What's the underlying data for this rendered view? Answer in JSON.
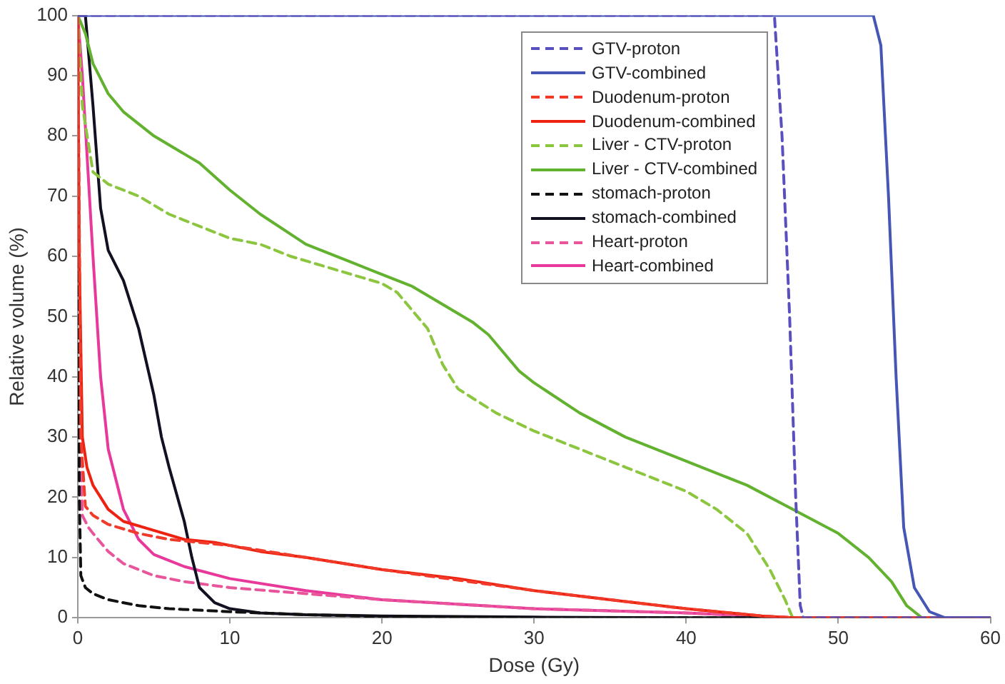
{
  "chart_data": {
    "type": "line",
    "xlabel": "Dose (Gy)",
    "ylabel": "Relative volume (%)",
    "xlim": [
      0,
      60
    ],
    "xticks": [
      0,
      10,
      20,
      30,
      40,
      50,
      60
    ],
    "ylim": [
      0,
      100
    ],
    "yticks": [
      0,
      10,
      20,
      30,
      40,
      50,
      60,
      70,
      80,
      90,
      100
    ],
    "grid": false,
    "legend": "top right",
    "marker": "none",
    "series": [
      {
        "name": "GTV-proton",
        "color": "#5a4fbf",
        "line_style": "dashed",
        "x": [
          0,
          45.8,
          46.3,
          46.8,
          47.2,
          47.5,
          47.7,
          60
        ],
        "values": [
          100,
          100,
          80,
          50,
          20,
          2,
          0,
          0
        ]
      },
      {
        "name": "GTV-combined",
        "color": "#4656b4",
        "line_style": "solid",
        "x": [
          0,
          52.3,
          52.8,
          53.3,
          53.8,
          54.3,
          55,
          56,
          57,
          60
        ],
        "values": [
          100,
          100,
          95,
          70,
          40,
          15,
          5,
          1,
          0,
          0
        ]
      },
      {
        "name": "Duodenum-proton",
        "color": "#f03a2a",
        "line_style": "dashed",
        "x": [
          0,
          0.2,
          0.5,
          1,
          2,
          4,
          6,
          10,
          15,
          20,
          30,
          40,
          45,
          47,
          60
        ],
        "values": [
          100,
          30,
          18.5,
          17,
          15.5,
          14,
          13,
          12,
          10,
          8,
          4.5,
          1.5,
          0.3,
          0,
          0
        ]
      },
      {
        "name": "Duodenum-combined",
        "color": "#ee2211",
        "line_style": "solid",
        "x": [
          0,
          0.1,
          0.3,
          0.6,
          1,
          2,
          3,
          5,
          7,
          9,
          12,
          15,
          20,
          25,
          30,
          35,
          40,
          45,
          47,
          60
        ],
        "values": [
          100,
          60,
          30,
          25,
          22,
          18,
          16,
          14.5,
          13,
          12.5,
          11,
          10,
          8,
          6.5,
          4.5,
          3,
          1.5,
          0.3,
          0,
          0
        ]
      },
      {
        "name": "Liver - CTV-proton",
        "color": "#8cc63f",
        "line_style": "dashed",
        "x": [
          0,
          0.3,
          1,
          2,
          4,
          6,
          8,
          10,
          12,
          14,
          16,
          18,
          20,
          21,
          22,
          23,
          24,
          25,
          27.5,
          30,
          33,
          36,
          40,
          42,
          44,
          45.5,
          46.5,
          47,
          60
        ],
        "values": [
          100,
          85,
          74,
          72,
          70,
          67,
          65,
          63,
          62,
          60,
          58.5,
          57,
          55.5,
          54,
          51,
          48,
          42,
          38,
          34,
          31,
          28,
          25,
          21,
          18,
          14,
          8,
          3,
          0,
          0
        ]
      },
      {
        "name": "Liver - CTV-combined",
        "color": "#62b22f",
        "line_style": "solid",
        "x": [
          0,
          0.5,
          1,
          2,
          3,
          5,
          7,
          8,
          10,
          12,
          15,
          18,
          20,
          22,
          24,
          26,
          27,
          28,
          29,
          30,
          33,
          36,
          40,
          44,
          47,
          50,
          52,
          53.5,
          54.5,
          55.5,
          60
        ],
        "values": [
          100,
          97,
          92,
          87,
          84,
          80,
          77,
          75.5,
          71,
          67,
          62,
          59,
          57,
          55,
          52,
          49,
          47,
          44,
          41,
          39,
          34,
          30,
          26,
          22,
          18,
          14,
          10,
          6,
          2,
          0,
          0
        ]
      },
      {
        "name": "stomach-proton",
        "color": "#111111",
        "line_style": "dashed",
        "x": [
          0,
          0.1,
          0.2,
          0.5,
          1,
          2,
          4,
          6,
          10,
          15,
          20,
          30,
          60
        ],
        "values": [
          100,
          20,
          7,
          5,
          4,
          3,
          2,
          1.5,
          1,
          0.5,
          0.2,
          0,
          0
        ]
      },
      {
        "name": "stomach-combined",
        "color": "#111122",
        "line_style": "solid",
        "x": [
          0,
          0.5,
          1,
          1.5,
          2,
          3,
          4,
          5,
          5.5,
          6,
          7,
          7.5,
          8,
          9,
          10,
          12,
          15,
          20,
          30,
          40,
          60
        ],
        "values": [
          100,
          100,
          85,
          68,
          61,
          56,
          48,
          37,
          30,
          25,
          16,
          10,
          5,
          2.5,
          1.5,
          0.8,
          0.5,
          0.3,
          0.1,
          0,
          0
        ]
      },
      {
        "name": "Heart-proton",
        "color": "#e8559b",
        "line_style": "dashed",
        "x": [
          0,
          0.1,
          0.3,
          0.7,
          1,
          2,
          3,
          5,
          7,
          10,
          15,
          20,
          30,
          40,
          47,
          60
        ],
        "values": [
          100,
          40,
          17,
          15,
          14,
          11,
          9,
          7,
          6,
          5,
          4,
          3,
          1.5,
          0.8,
          0,
          0
        ]
      },
      {
        "name": "Heart-combined",
        "color": "#e8399b",
        "line_style": "solid",
        "x": [
          0,
          0.3,
          1,
          1.5,
          2,
          3,
          4,
          5,
          7,
          10,
          15,
          20,
          30,
          40,
          47,
          60
        ],
        "values": [
          100,
          90,
          60,
          40,
          28,
          18,
          13,
          10.5,
          8.5,
          6.5,
          4.5,
          3,
          1.5,
          0.8,
          0,
          0
        ]
      }
    ]
  }
}
